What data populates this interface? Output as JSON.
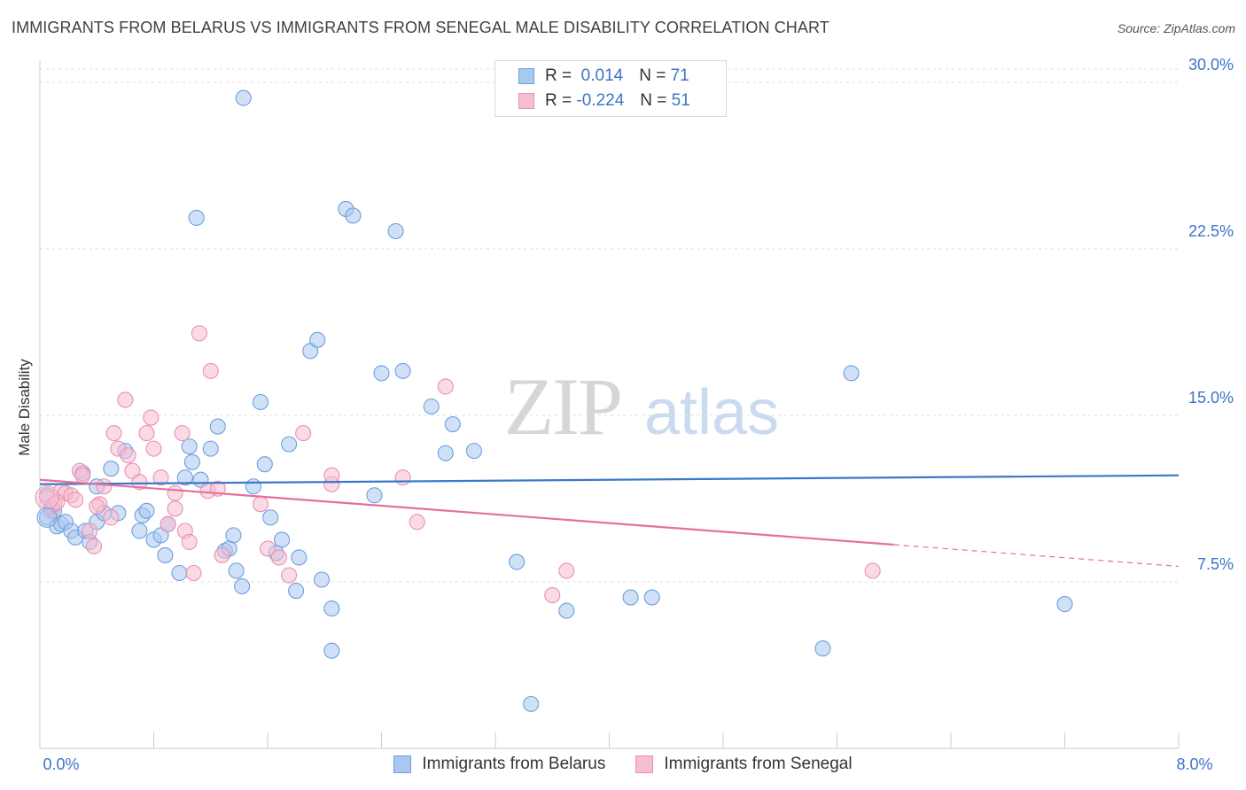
{
  "title": "IMMIGRANTS FROM BELARUS VS IMMIGRANTS FROM SENEGAL MALE DISABILITY CORRELATION CHART",
  "source": "Source: ZipAtlas.com",
  "watermark": {
    "zip": "ZIP",
    "atlas": "atlas"
  },
  "colors": {
    "belarus_fill": "#a9c8f0",
    "belarus_stroke": "#6d9fdc",
    "belarus_line": "#3a78cc",
    "senegal_fill": "#f6bed0",
    "senegal_stroke": "#ec8fb0",
    "senegal_line": "#e4709b",
    "tick_label": "#3d74c9",
    "grid": "#dedede"
  },
  "legend_box": [
    {
      "r_label": "R =",
      "r_value": "0.014",
      "n_label": "N =",
      "n_value": "71"
    },
    {
      "r_label": "R =",
      "r_value": "-0.224",
      "n_label": "N =",
      "n_value": "51"
    }
  ],
  "chart_data": {
    "type": "scatter",
    "title": "IMMIGRANTS FROM BELARUS VS IMMIGRANTS FROM SENEGAL MALE DISABILITY CORRELATION CHART",
    "xlabel": "",
    "ylabel": "Male Disability",
    "xlim": [
      0,
      8
    ],
    "ylim": [
      0,
      31
    ],
    "x_tick_labels": [
      {
        "x": 0,
        "label": "0.0%"
      },
      {
        "x": 8,
        "label": "8.0%"
      }
    ],
    "y_ticks": [
      {
        "y": 7.5,
        "label": "7.5%"
      },
      {
        "y": 15,
        "label": "15.0%"
      },
      {
        "y": 22.5,
        "label": "22.5%"
      },
      {
        "y": 30,
        "label": "30.0%"
      }
    ],
    "series": [
      {
        "name": "Immigrants from Belarus",
        "trend": {
          "x0": 0,
          "y0": 11.9,
          "x1": 8,
          "y1": 12.3,
          "solid_until": 8
        },
        "points": [
          [
            0.05,
            11.4
          ],
          [
            0.05,
            10.4
          ],
          [
            0.1,
            10.7
          ],
          [
            0.12,
            10.0
          ],
          [
            0.15,
            10.1
          ],
          [
            0.18,
            10.2
          ],
          [
            0.22,
            9.8
          ],
          [
            0.25,
            9.5
          ],
          [
            0.32,
            9.8
          ],
          [
            0.35,
            9.3
          ],
          [
            0.4,
            10.2
          ],
          [
            0.45,
            10.6
          ],
          [
            0.3,
            12.4
          ],
          [
            0.5,
            12.6
          ],
          [
            0.6,
            13.4
          ],
          [
            0.4,
            11.8
          ],
          [
            0.55,
            10.6
          ],
          [
            0.72,
            10.5
          ],
          [
            0.75,
            10.7
          ],
          [
            0.7,
            9.8
          ],
          [
            0.8,
            9.4
          ],
          [
            0.85,
            9.6
          ],
          [
            0.9,
            10.1
          ],
          [
            0.88,
            8.7
          ],
          [
            0.98,
            7.9
          ],
          [
            1.02,
            12.2
          ],
          [
            1.05,
            13.6
          ],
          [
            1.07,
            12.9
          ],
          [
            1.13,
            12.1
          ],
          [
            1.2,
            13.5
          ],
          [
            1.25,
            14.5
          ],
          [
            1.3,
            8.9
          ],
          [
            1.33,
            9.0
          ],
          [
            1.36,
            9.6
          ],
          [
            1.38,
            8.0
          ],
          [
            1.42,
            7.3
          ],
          [
            1.5,
            11.8
          ],
          [
            1.55,
            15.6
          ],
          [
            1.58,
            12.8
          ],
          [
            1.62,
            10.4
          ],
          [
            1.66,
            8.8
          ],
          [
            1.7,
            9.4
          ],
          [
            1.75,
            13.7
          ],
          [
            1.8,
            7.1
          ],
          [
            1.82,
            8.6
          ],
          [
            1.9,
            17.9
          ],
          [
            1.95,
            18.4
          ],
          [
            1.98,
            7.6
          ],
          [
            2.05,
            6.3
          ],
          [
            2.05,
            4.4
          ],
          [
            2.15,
            24.3
          ],
          [
            2.2,
            24.0
          ],
          [
            2.35,
            11.4
          ],
          [
            2.4,
            16.9
          ],
          [
            2.5,
            23.3
          ],
          [
            2.55,
            17.0
          ],
          [
            2.75,
            15.4
          ],
          [
            2.85,
            13.3
          ],
          [
            2.9,
            14.6
          ],
          [
            3.05,
            13.4
          ],
          [
            3.35,
            8.4
          ],
          [
            3.45,
            2.0
          ],
          [
            3.7,
            6.2
          ],
          [
            4.15,
            6.8
          ],
          [
            4.3,
            6.8
          ],
          [
            5.5,
            4.5
          ],
          [
            5.7,
            16.9
          ],
          [
            7.2,
            6.5
          ],
          [
            1.1,
            23.9
          ],
          [
            1.43,
            29.3
          ],
          [
            0.08,
            10.9
          ]
        ]
      },
      {
        "name": "Immigrants from Senegal",
        "trend": {
          "x0": 0,
          "y0": 12.1,
          "x1": 8,
          "y1": 8.2,
          "solid_until": 6.0
        },
        "points": [
          [
            0.05,
            11.3
          ],
          [
            0.08,
            10.7
          ],
          [
            0.1,
            11.0
          ],
          [
            0.15,
            11.6
          ],
          [
            0.18,
            11.5
          ],
          [
            0.22,
            11.4
          ],
          [
            0.25,
            11.2
          ],
          [
            0.28,
            12.5
          ],
          [
            0.3,
            12.3
          ],
          [
            0.35,
            9.8
          ],
          [
            0.38,
            9.1
          ],
          [
            0.42,
            11.0
          ],
          [
            0.45,
            11.8
          ],
          [
            0.5,
            10.4
          ],
          [
            0.52,
            14.2
          ],
          [
            0.55,
            13.5
          ],
          [
            0.6,
            15.7
          ],
          [
            0.62,
            13.2
          ],
          [
            0.65,
            12.5
          ],
          [
            0.7,
            12.0
          ],
          [
            0.75,
            14.2
          ],
          [
            0.78,
            14.9
          ],
          [
            0.8,
            13.5
          ],
          [
            0.85,
            12.2
          ],
          [
            0.9,
            10.1
          ],
          [
            0.95,
            11.5
          ],
          [
            1.0,
            14.2
          ],
          [
            1.02,
            9.8
          ],
          [
            1.05,
            9.3
          ],
          [
            1.08,
            7.9
          ],
          [
            1.12,
            18.7
          ],
          [
            1.18,
            11.6
          ],
          [
            1.2,
            17.0
          ],
          [
            1.25,
            11.7
          ],
          [
            1.28,
            8.7
          ],
          [
            1.55,
            11.0
          ],
          [
            1.6,
            9.0
          ],
          [
            1.68,
            8.6
          ],
          [
            1.75,
            7.8
          ],
          [
            1.85,
            14.2
          ],
          [
            2.05,
            11.9
          ],
          [
            2.05,
            12.3
          ],
          [
            2.55,
            12.2
          ],
          [
            2.65,
            10.2
          ],
          [
            2.85,
            16.3
          ],
          [
            3.6,
            6.9
          ],
          [
            3.7,
            8.0
          ],
          [
            5.85,
            8.0
          ],
          [
            0.12,
            11.1
          ],
          [
            0.4,
            10.9
          ],
          [
            0.95,
            10.8
          ]
        ]
      }
    ],
    "legend": [
      "Immigrants from Belarus",
      "Immigrants from Senegal"
    ]
  }
}
